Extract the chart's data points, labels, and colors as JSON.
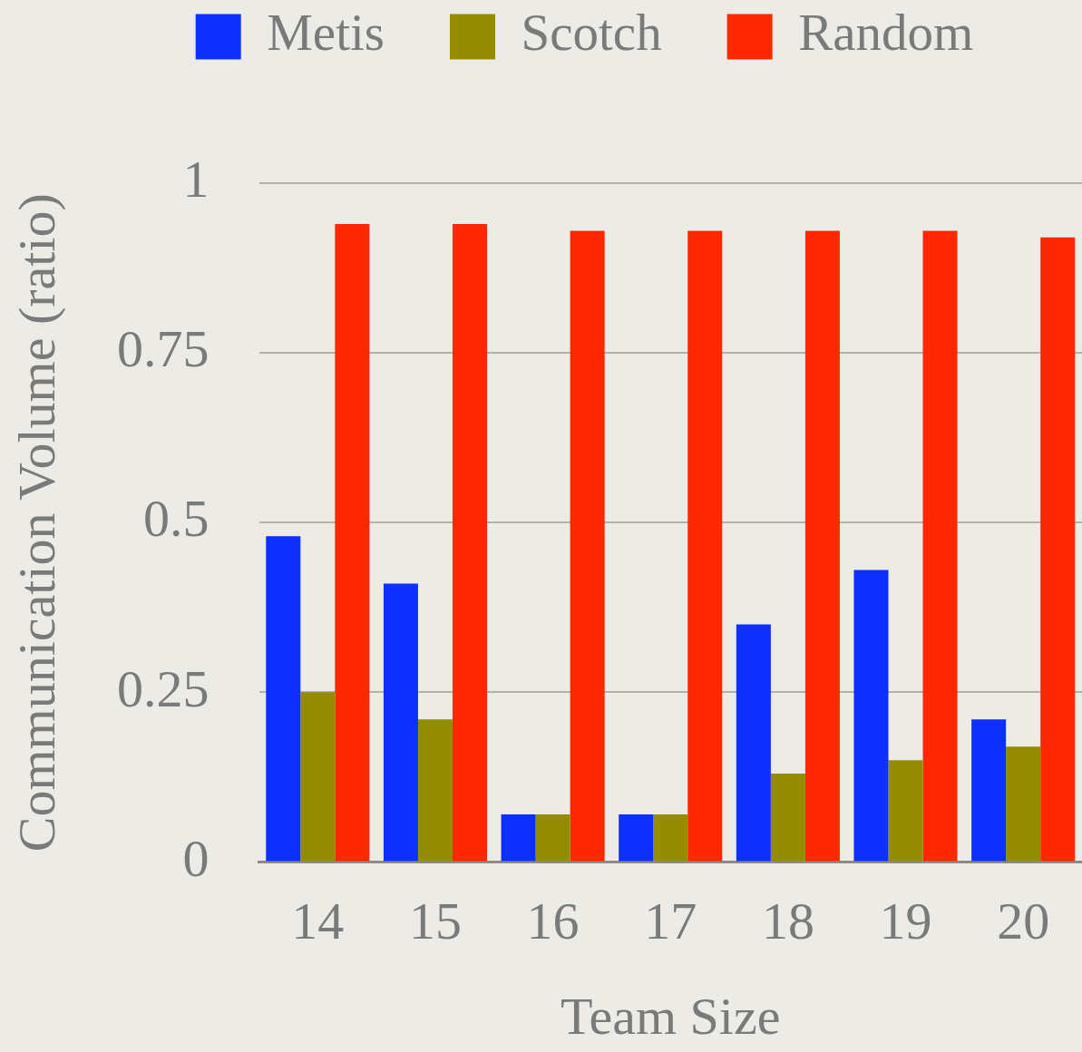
{
  "chart_data": {
    "type": "bar",
    "xlabel": "Team Size",
    "ylabel": "Communication Volume (ratio)",
    "categories": [
      "14",
      "15",
      "16",
      "17",
      "18",
      "19",
      "20"
    ],
    "series": [
      {
        "name": "Metis",
        "color": "#0d30ff",
        "values": [
          0.48,
          0.41,
          0.07,
          0.07,
          0.35,
          0.43,
          0.21
        ]
      },
      {
        "name": "Scotch",
        "color": "#948d00",
        "values": [
          0.25,
          0.21,
          0.07,
          0.07,
          0.13,
          0.15,
          0.17
        ]
      },
      {
        "name": "Random",
        "color": "#ff2800",
        "values": [
          0.94,
          0.94,
          0.93,
          0.93,
          0.93,
          0.93,
          0.92
        ]
      }
    ],
    "ylim": [
      0,
      1
    ],
    "yticks": [
      0,
      0.25,
      0.5,
      0.75,
      1
    ],
    "grid": "y",
    "legend": "top"
  }
}
